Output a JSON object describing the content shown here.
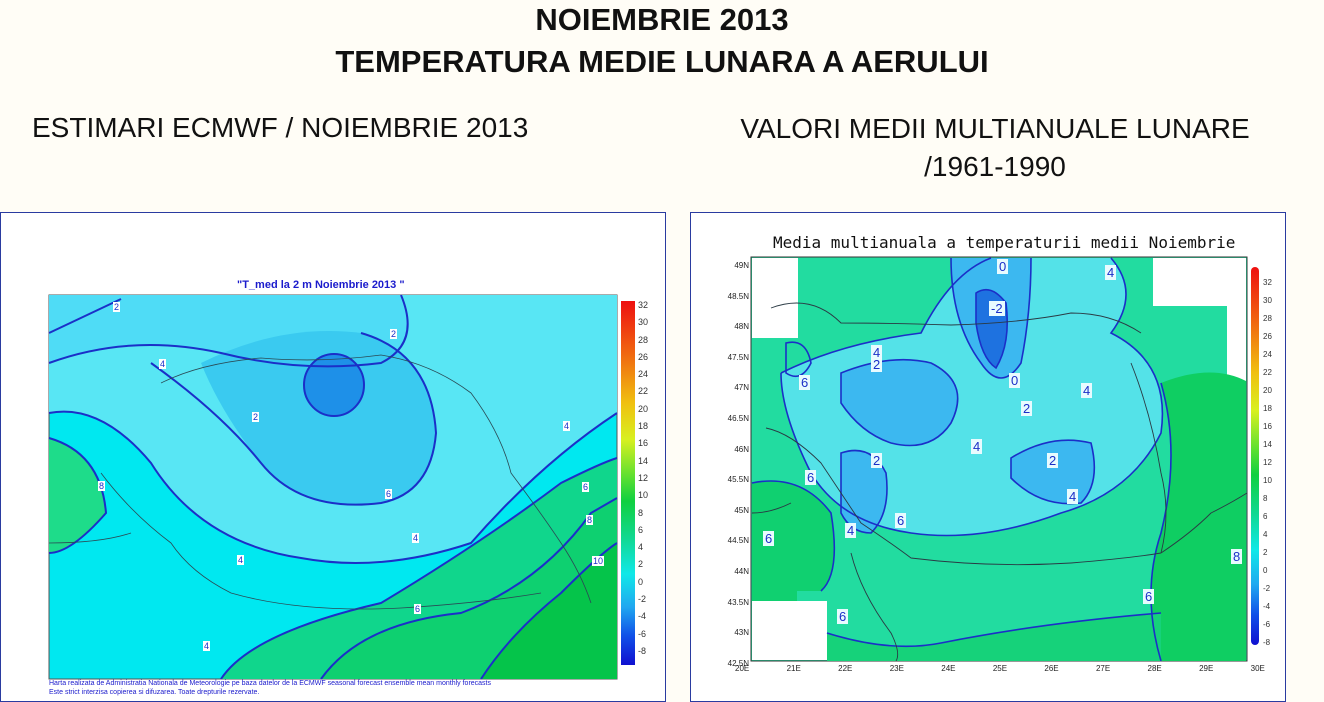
{
  "header": {
    "title": "NOIEMBRIE 2013",
    "subtitle": "TEMPERATURA MEDIE LUNARA A AERULUI"
  },
  "left_panel": {
    "heading": "ESTIMARI ECMWF / NOIEMBRIE 2013",
    "map_title": "\"T_med la 2 m Noiembrie 2013 \"",
    "footnote_1": "Harta realizata de Administratia Nationala de Meteorologie pe baza datelor de la ECMWF seasonal forecast ensemble mean monthly forecasts",
    "footnote_2": "Este strict interzisa copierea si difuzarea. Toate drepturile rezervate.",
    "contour_labels": [
      "2",
      "4",
      "2",
      "2",
      "4",
      "8",
      "6",
      "4",
      "4",
      "6",
      "8",
      "10",
      "6",
      "4"
    ],
    "colorbar_ticks": [
      "32",
      "30",
      "28",
      "26",
      "24",
      "22",
      "20",
      "18",
      "16",
      "14",
      "12",
      "10",
      "8",
      "6",
      "4",
      "2",
      "0",
      "-2",
      "-4",
      "-6",
      "-8"
    ]
  },
  "right_panel": {
    "heading": "VALORI MEDII MULTIANUALE LUNARE /1961-1990",
    "map_title": "Media multianuala a temperaturii medii Noiembrie",
    "lat_labels": [
      "49N",
      "48.5N",
      "48N",
      "47.5N",
      "47N",
      "46.5N",
      "46N",
      "45.5N",
      "45N",
      "44.5N",
      "44N",
      "43.5N",
      "43N",
      "42.5N"
    ],
    "lon_labels": [
      "20E",
      "21E",
      "22E",
      "23E",
      "24E",
      "25E",
      "26E",
      "27E",
      "28E",
      "29E",
      "30E"
    ],
    "contour_labels": [
      "0",
      "4",
      "-2",
      "4",
      "2",
      "6",
      "0",
      "4",
      "2",
      "4",
      "2",
      "2",
      "6",
      "4",
      "4",
      "6",
      "6",
      "8",
      "6",
      "6"
    ],
    "colorbar_ticks": [
      "32",
      "30",
      "28",
      "26",
      "24",
      "22",
      "20",
      "18",
      "16",
      "14",
      "12",
      "10",
      "8",
      "6",
      "4",
      "2",
      "0",
      "-2",
      "-4",
      "-6",
      "-8"
    ]
  }
}
